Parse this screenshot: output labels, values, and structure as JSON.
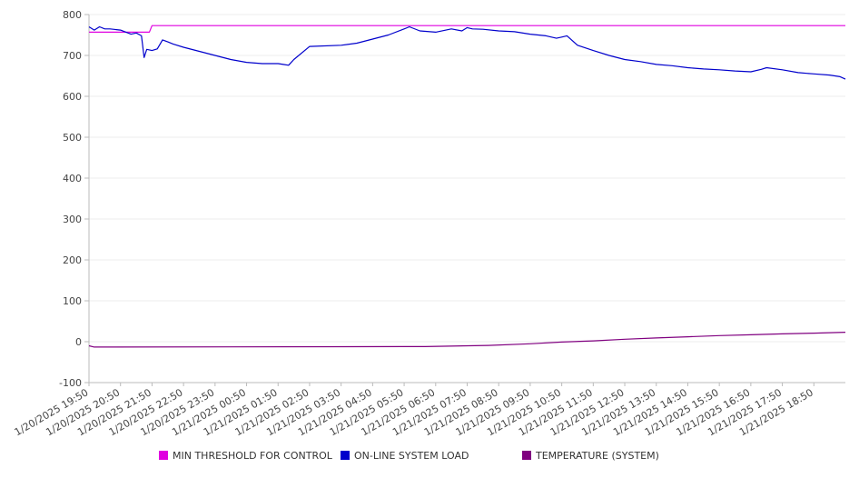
{
  "chart_data": {
    "type": "line",
    "title": "",
    "xlabel": "",
    "ylabel": "",
    "ylim": [
      -100,
      800
    ],
    "yticks": [
      800,
      700,
      600,
      500,
      400,
      300,
      200,
      100,
      0,
      -100
    ],
    "xlim": [
      "1/20/2025 19:50",
      "1/21/2025 19:50"
    ],
    "xtick_labels": [
      "1/20/2025 19:50",
      "1/20/2025 20:50",
      "1/20/2025 21:50",
      "1/20/2025 22:50",
      "1/20/2025 23:50",
      "1/21/2025 00:50",
      "1/21/2025 01:50",
      "1/21/2025 02:50",
      "1/21/2025 03:50",
      "1/21/2025 04:50",
      "1/21/2025 05:50",
      "1/21/2025 06:50",
      "1/21/2025 07:50",
      "1/21/2025 08:50",
      "1/21/2025 09:50",
      "1/21/2025 10:50",
      "1/21/2025 11:50",
      "1/21/2025 12:50",
      "1/21/2025 13:50",
      "1/21/2025 14:50",
      "1/21/2025 15:50",
      "1/21/2025 16:50",
      "1/21/2025 17:50",
      "1/21/2025 18:50"
    ],
    "grid": true,
    "legend_position": "bottom",
    "series": [
      {
        "name": "MIN THRESHOLD FOR CONTROL",
        "color": "#e000e0",
        "x": [
          "1/20/2025 19:50",
          "1/20/2025 21:45",
          "1/20/2025 21:50",
          "1/21/2025 19:50"
        ],
        "y": [
          757,
          757,
          773,
          773
        ]
      },
      {
        "name": "ON-LINE SYSTEM LOAD",
        "color": "#0000cc",
        "x": [
          "1/20/2025 19:50",
          "1/20/2025 20:00",
          "1/20/2025 20:10",
          "1/20/2025 20:20",
          "1/20/2025 20:30",
          "1/20/2025 20:50",
          "1/20/2025 21:10",
          "1/20/2025 21:20",
          "1/20/2025 21:30",
          "1/20/2025 21:35",
          "1/20/2025 21:40",
          "1/20/2025 21:50",
          "1/20/2025 22:00",
          "1/20/2025 22:10",
          "1/20/2025 22:20",
          "1/20/2025 22:30",
          "1/20/2025 22:50",
          "1/20/2025 23:20",
          "1/20/2025 23:50",
          "1/21/2025 00:20",
          "1/21/2025 00:50",
          "1/21/2025 01:20",
          "1/21/2025 01:50",
          "1/21/2025 02:00",
          "1/21/2025 02:10",
          "1/21/2025 02:20",
          "1/21/2025 02:50",
          "1/21/2025 03:50",
          "1/21/2025 04:20",
          "1/21/2025 04:50",
          "1/21/2025 05:20",
          "1/21/2025 05:50",
          "1/21/2025 06:00",
          "1/21/2025 06:20",
          "1/21/2025 06:50",
          "1/21/2025 07:20",
          "1/21/2025 07:40",
          "1/21/2025 07:50",
          "1/21/2025 08:00",
          "1/21/2025 08:20",
          "1/21/2025 08:50",
          "1/21/2025 09:20",
          "1/21/2025 09:50",
          "1/21/2025 10:20",
          "1/21/2025 10:40",
          "1/21/2025 10:50",
          "1/21/2025 11:00",
          "1/21/2025 11:20",
          "1/21/2025 11:50",
          "1/21/2025 12:20",
          "1/21/2025 12:50",
          "1/21/2025 13:20",
          "1/21/2025 13:50",
          "1/21/2025 14:20",
          "1/21/2025 14:50",
          "1/21/2025 15:20",
          "1/21/2025 15:50",
          "1/21/2025 16:20",
          "1/21/2025 16:50",
          "1/21/2025 17:10",
          "1/21/2025 17:20",
          "1/21/2025 17:50",
          "1/21/2025 18:20",
          "1/21/2025 18:50",
          "1/21/2025 19:20",
          "1/21/2025 19:40",
          "1/21/2025 19:50"
        ],
        "y": [
          770,
          762,
          770,
          765,
          765,
          762,
          752,
          755,
          748,
          695,
          715,
          712,
          716,
          738,
          733,
          728,
          720,
          710,
          700,
          690,
          683,
          680,
          680,
          678,
          676,
          690,
          722,
          725,
          730,
          740,
          750,
          765,
          770,
          760,
          757,
          765,
          760,
          768,
          765,
          764,
          760,
          758,
          752,
          748,
          742,
          745,
          748,
          725,
          712,
          700,
          690,
          685,
          678,
          675,
          670,
          667,
          665,
          662,
          660,
          666,
          670,
          665,
          658,
          655,
          652,
          648,
          642
        ]
      },
      {
        "name": "TEMPERATURE (SYSTEM)",
        "color": "#800080",
        "x": [
          "1/20/2025 19:50",
          "1/20/2025 20:00",
          "1/21/2025 05:50",
          "1/21/2025 06:30",
          "1/21/2025 08:30",
          "1/21/2025 09:50",
          "1/21/2025 10:50",
          "1/21/2025 11:50",
          "1/21/2025 12:50",
          "1/21/2025 13:50",
          "1/21/2025 14:50",
          "1/21/2025 15:50",
          "1/21/2025 16:50",
          "1/21/2025 17:50",
          "1/21/2025 18:50",
          "1/21/2025 19:50"
        ],
        "y": [
          -10,
          -13,
          -12,
          -12,
          -9,
          -5,
          -1,
          2,
          6,
          9,
          12,
          15,
          17,
          19,
          21,
          23
        ]
      }
    ]
  }
}
